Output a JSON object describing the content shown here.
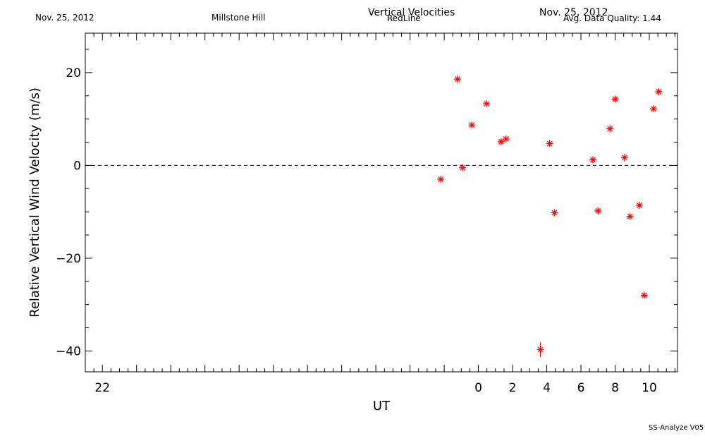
{
  "header": {
    "date_left": "Nov. 25, 2012",
    "site": "Millstone Hill",
    "title": "Vertical Velocities",
    "subtitle": "RedLine",
    "date_right": "Nov. 25, 2012",
    "quality": "Avg. Data Quality: 1.44"
  },
  "footer": {
    "version": "SS-Analyze V05"
  },
  "colors": {
    "marker": "#ff0000",
    "axis": "#000000",
    "zero_line": "#000000"
  },
  "chart_data": {
    "type": "scatter",
    "title": "Vertical Velocities",
    "subtitle": "RedLine",
    "xlabel": "UT",
    "ylabel": "Relative Vertical Wind Velocity (m/s)",
    "xlim": [
      -23.0,
      11.65
    ],
    "ylim": [
      -44.5,
      28.5
    ],
    "x_ticks": [
      -22,
      0,
      2,
      4,
      6,
      8,
      10
    ],
    "x_tick_labels": [
      "22",
      "0",
      "2",
      "4",
      "6",
      "8",
      "10"
    ],
    "y_ticks": [
      20,
      0,
      -20,
      -40
    ],
    "y_tick_labels": [
      "20",
      "0",
      "−20",
      "−40"
    ],
    "zero_line": true,
    "grid": false,
    "marker": "asterisk",
    "series": [
      {
        "points": [
          {
            "x": -2.2,
            "y": -3.0
          },
          {
            "x": -1.22,
            "y": 18.6
          },
          {
            "x": -0.93,
            "y": -0.5
          },
          {
            "x": -0.38,
            "y": 8.7
          },
          {
            "x": 0.47,
            "y": 13.3
          },
          {
            "x": 1.33,
            "y": 5.1
          },
          {
            "x": 1.62,
            "y": 5.7
          },
          {
            "x": 3.63,
            "y": -39.7,
            "err": 1.6
          },
          {
            "x": 4.17,
            "y": 4.7
          },
          {
            "x": 4.45,
            "y": -10.2
          },
          {
            "x": 6.7,
            "y": 1.2
          },
          {
            "x": 7.0,
            "y": -9.8
          },
          {
            "x": 7.7,
            "y": 7.9
          },
          {
            "x": 8.0,
            "y": 14.3
          },
          {
            "x": 8.55,
            "y": 1.7
          },
          {
            "x": 8.87,
            "y": -11.0
          },
          {
            "x": 9.42,
            "y": -8.6
          },
          {
            "x": 9.7,
            "y": -28.0
          },
          {
            "x": 10.25,
            "y": 12.2
          },
          {
            "x": 10.55,
            "y": 15.9
          }
        ]
      }
    ]
  }
}
